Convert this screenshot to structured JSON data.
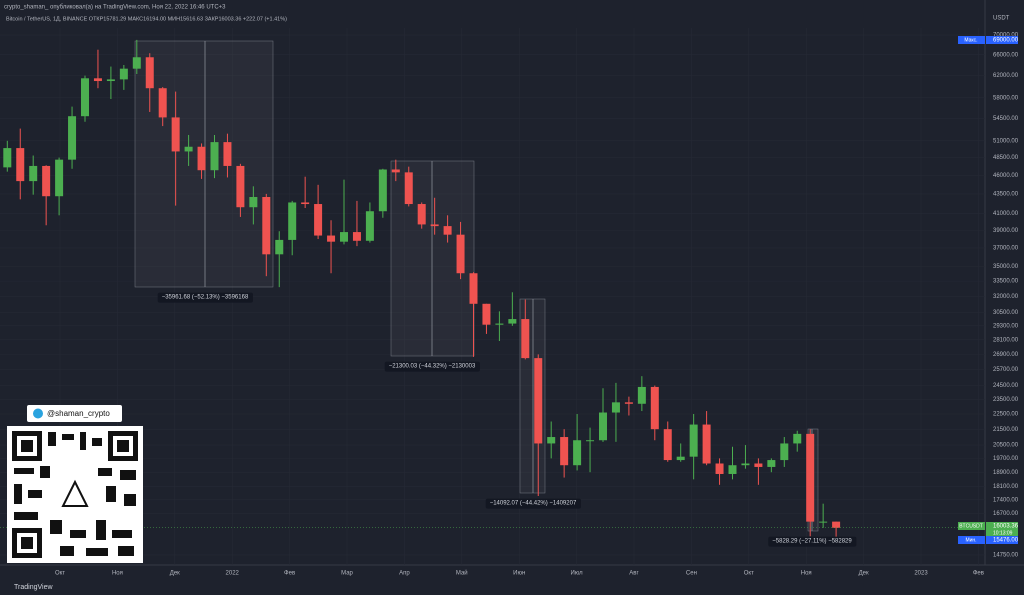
{
  "chart_data": {
    "type": "candlestick",
    "header": "crypto_shaman_ опубликовал(а) на TradingView.com, Ноя 22, 2022 16:46 UTC+3",
    "symbol_line": "Bitcoin / TetherUS, 1Д, BINANCE  ОТКР15781.29  МАКС16194.00  МИН15616.63  ЗАКР16003.36  +222.07 (+1.41%)",
    "currency": "USDT",
    "log_scale": true,
    "grid": true,
    "up_color": "#4caf50",
    "down_color": "#ef5350",
    "ylim": [
      14400,
      71500
    ],
    "yticks": [
      {
        "value": 70000,
        "label": "70000.00"
      },
      {
        "value": 66000,
        "label": "66000.00"
      },
      {
        "value": 62000,
        "label": "62000.00"
      },
      {
        "value": 58000,
        "label": "58000.00"
      },
      {
        "value": 54500,
        "label": "54500.00"
      },
      {
        "value": 51000,
        "label": "51000.00"
      },
      {
        "value": 48500,
        "label": "48500.00"
      },
      {
        "value": 46000,
        "label": "46000.00"
      },
      {
        "value": 43500,
        "label": "43500.00"
      },
      {
        "value": 41000,
        "label": "41000.00"
      },
      {
        "value": 39000,
        "label": "39000.00"
      },
      {
        "value": 37000,
        "label": "37000.00"
      },
      {
        "value": 35000,
        "label": "35000.00"
      },
      {
        "value": 33500,
        "label": "33500.00"
      },
      {
        "value": 32000,
        "label": "32000.00"
      },
      {
        "value": 30500,
        "label": "30500.00"
      },
      {
        "value": 29300,
        "label": "29300.00"
      },
      {
        "value": 28100,
        "label": "28100.00"
      },
      {
        "value": 26900,
        "label": "26900.00"
      },
      {
        "value": 25700,
        "label": "25700.00"
      },
      {
        "value": 24500,
        "label": "24500.00"
      },
      {
        "value": 23500,
        "label": "23500.00"
      },
      {
        "value": 22500,
        "label": "22500.00"
      },
      {
        "value": 21500,
        "label": "21500.00"
      },
      {
        "value": 20500,
        "label": "20500.00"
      },
      {
        "value": 19700,
        "label": "19700.00"
      },
      {
        "value": 18900,
        "label": "18900.00"
      },
      {
        "value": 18100,
        "label": "18100.00"
      },
      {
        "value": 17400,
        "label": "17400.00"
      },
      {
        "value": 16700,
        "label": "16700.00"
      },
      {
        "value": 14750,
        "label": "14750.00"
      }
    ],
    "month_labels": [
      "Окт",
      "Ноя",
      "Дек",
      "2022",
      "Фев",
      "Мар",
      "Апр",
      "Май",
      "Июн",
      "Июл",
      "Авг",
      "Сен",
      "Окт",
      "Ноя",
      "Дек",
      "2023",
      "Фев"
    ],
    "open": [
      47100,
      49900,
      45200,
      47300,
      43200,
      48200,
      54900,
      61500,
      61000,
      61300,
      63300,
      65500,
      59700,
      54700,
      49400,
      50100,
      46700,
      50800,
      47300,
      41800,
      43100,
      36300,
      37900,
      42400,
      42200,
      38400,
      37700,
      38800,
      37800,
      41300,
      46800,
      46400,
      42200,
      39700,
      39500,
      38500,
      34300,
      31300,
      29400,
      29500,
      29900,
      26600,
      20600,
      21000,
      19300,
      20800,
      20800,
      22600,
      23300,
      23200,
      24400,
      21500,
      19600,
      19800,
      21800,
      19400,
      18800,
      19300,
      19400,
      19200,
      19600,
      20600,
      21200,
      16300,
      16300
    ],
    "high": [
      51000,
      52900,
      48800,
      47400,
      48500,
      56500,
      62000,
      67000,
      63700,
      64000,
      69000,
      66300,
      59900,
      59100,
      51900,
      50600,
      51900,
      52100,
      47600,
      44500,
      43500,
      38900,
      42600,
      45800,
      44700,
      40200,
      45400,
      42600,
      42400,
      46900,
      48200,
      47200,
      42400,
      43000,
      40800,
      40000,
      34400,
      31300,
      30600,
      32400,
      31700,
      26900,
      22000,
      21500,
      22500,
      21600,
      24300,
      24700,
      23700,
      25200,
      24500,
      22000,
      20600,
      22500,
      22700,
      19700,
      20400,
      20500,
      19700,
      19700,
      21000,
      21400,
      21500,
      17200,
      16300
    ],
    "low": [
      46500,
      42800,
      43400,
      39600,
      40800,
      46900,
      54000,
      59700,
      57800,
      59400,
      62300,
      55600,
      53300,
      42000,
      47300,
      45500,
      45600,
      45700,
      40600,
      39700,
      34000,
      32900,
      36200,
      41700,
      38000,
      34300,
      37400,
      37200,
      37600,
      40500,
      45200,
      41900,
      39200,
      38500,
      37600,
      33700,
      26700,
      28600,
      28000,
      29300,
      26500,
      17600,
      19700,
      18600,
      19000,
      18900,
      20700,
      20700,
      22400,
      22700,
      20800,
      19500,
      19500,
      18500,
      19300,
      18200,
      18500,
      19100,
      18200,
      18900,
      19200,
      20100,
      15600,
      16000,
      15500
    ],
    "close": [
      49900,
      45200,
      47300,
      43200,
      48200,
      54900,
      61500,
      61000,
      61300,
      63300,
      65500,
      59700,
      54700,
      49400,
      50100,
      46700,
      50800,
      47300,
      41800,
      43100,
      36300,
      37900,
      42400,
      42200,
      38400,
      37700,
      38800,
      37800,
      41300,
      46800,
      46400,
      42200,
      39700,
      39500,
      38500,
      34300,
      31300,
      29400,
      29500,
      29900,
      26600,
      20600,
      21000,
      19300,
      20800,
      20800,
      22600,
      23300,
      23200,
      24400,
      21500,
      19600,
      19800,
      21800,
      19400,
      18800,
      19300,
      19400,
      19200,
      19600,
      20600,
      21200,
      16300,
      16300,
      16003.36
    ],
    "measures": [
      "−35961.68 (−52.13%) −3596168",
      "−21300.03 (−44.32%) −2130003",
      "−14092.07 (−44.42%) −1409207",
      "−5828.29 (−27.11%) −582829"
    ],
    "price_tags": [
      {
        "tag": "Макс.",
        "price": "69000.00"
      },
      {
        "tag": "BTCUSDT",
        "price": "16003.36",
        "timer": "10:13:09"
      },
      {
        "tag": "Мин.",
        "price": "15476.00"
      }
    ],
    "telegram": "@shaman_crypto",
    "footer": "TradingView"
  }
}
